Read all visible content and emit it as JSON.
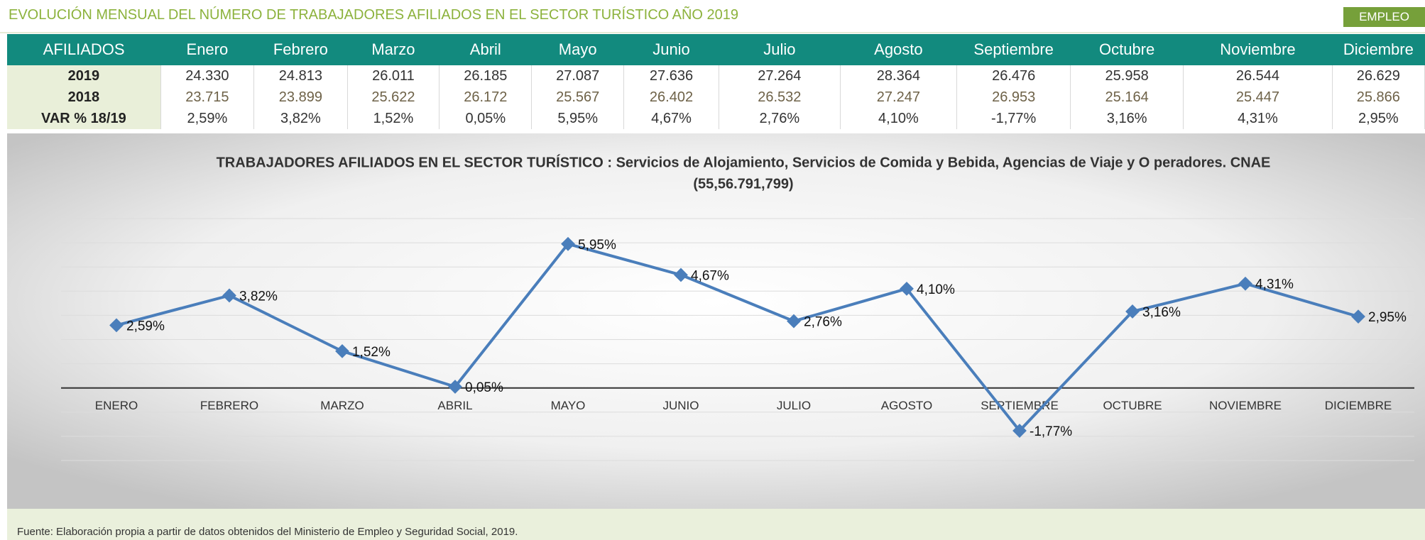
{
  "header": {
    "title": "EVOLUCIÓN MENSUAL DEL NÚMERO DE TRABAJADORES AFILIADOS EN EL SECTOR TURÍSTICO AÑO 2019",
    "tag": "EMPLEO"
  },
  "table": {
    "columns": [
      "AFILIADOS",
      "Enero",
      "Febrero",
      "Marzo",
      "Abril",
      "Mayo",
      "Junio",
      "Julio",
      "Agosto",
      "Septiembre",
      "Octubre",
      "Noviembre",
      "Diciembre"
    ],
    "rows": [
      [
        "2019",
        "24.330",
        "24.813",
        "26.011",
        "26.185",
        "27.087",
        "27.636",
        "27.264",
        "28.364",
        "26.476",
        "25.958",
        "26.544",
        "26.629"
      ],
      [
        "2018",
        "23.715",
        "23.899",
        "25.622",
        "26.172",
        "25.567",
        "26.402",
        "26.532",
        "27.247",
        "26.953",
        "25.164",
        "25.447",
        "25.866"
      ],
      [
        "VAR % 18/19",
        "2,59%",
        "3,82%",
        "1,52%",
        "0,05%",
        "5,95%",
        "4,67%",
        "2,76%",
        "4,10%",
        "-1,77%",
        "3,16%",
        "4,31%",
        "2,95%"
      ]
    ]
  },
  "chart_data": {
    "type": "line",
    "title": "TRABAJADORES AFILIADOS EN EL SECTOR TURÍSTICO : Servicios de Alojamiento, Servicios de Comida y Bebida, Agencias de Viaje y O peradores. CNAE",
    "subtitle": "(55,56.791,799)",
    "categories": [
      "ENERO",
      "FEBRERO",
      "MARZO",
      "ABRIL",
      "MAYO",
      "JUNIO",
      "JULIO",
      "AGOSTO",
      "SEPTIEMBRE",
      "OCTUBRE",
      "NOVIEMBRE",
      "DICIEMBRE"
    ],
    "values": [
      2.59,
      3.82,
      1.52,
      0.05,
      5.95,
      4.67,
      2.76,
      4.1,
      -1.77,
      3.16,
      4.31,
      2.95
    ],
    "value_labels": [
      "2,59%",
      "3,82%",
      "1,52%",
      "0,05%",
      "5,95%",
      "4,67%",
      "2,76%",
      "4,10%",
      "-1,77%",
      "3,16%",
      "4,31%",
      "2,95%"
    ],
    "color": "#4a7ebb",
    "ylim": [
      -3,
      7
    ],
    "yticks": [
      -3,
      -2,
      -1,
      0,
      1,
      2,
      3,
      4,
      5,
      6,
      7
    ],
    "grid": true
  },
  "footer": {
    "source": "Fuente: Elaboración propia a partir de datos obtenidos del Ministerio de Empleo y Seguridad Social, 2019."
  }
}
